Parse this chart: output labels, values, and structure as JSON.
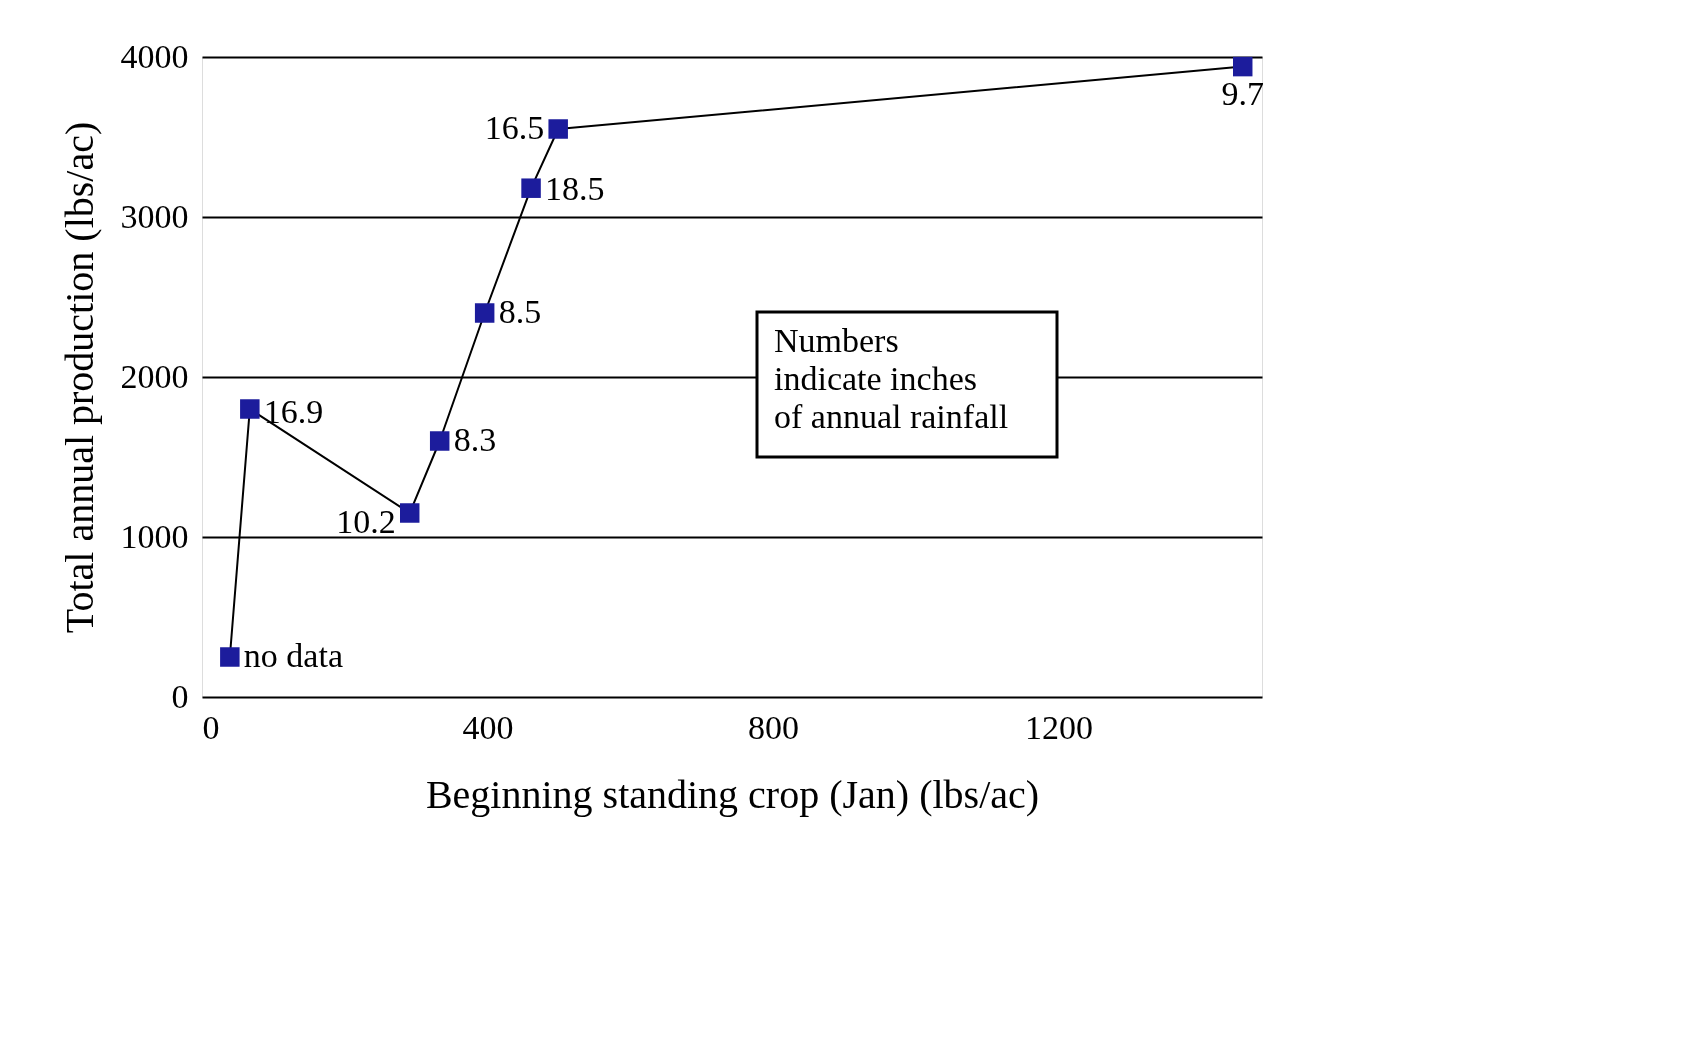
{
  "chart_data": {
    "type": "line",
    "xlabel": "Beginning standing crop (Jan) (lbs/ac)",
    "ylabel": "Total annual production (lbs/ac)",
    "x": [
      39,
      67,
      291,
      333,
      396,
      461,
      499,
      1458
    ],
    "series": [
      {
        "color": "#1c1c9c",
        "values": [
          250,
          1800,
          1150,
          1600,
          2400,
          3180,
          3550,
          3940
        ]
      }
    ],
    "xlim": [
      0,
      1485
    ],
    "ylim": [
      0,
      4000
    ],
    "xticks": [
      0,
      400,
      800,
      1200
    ],
    "yticks": [
      0,
      1000,
      2000,
      3000,
      4000
    ],
    "grid": "y",
    "marker": "square",
    "line_style": "solid",
    "annotations": [
      {
        "text": "no data",
        "x": 39,
        "y": 250
      },
      {
        "text": "16.9",
        "x": 67,
        "y": 1800
      },
      {
        "text": "10.2",
        "x": 291,
        "y": 1150
      },
      {
        "text": "8.3",
        "x": 333,
        "y": 1600
      },
      {
        "text": "8.5",
        "x": 396,
        "y": 2400
      },
      {
        "text": "18.5",
        "x": 461,
        "y": 3180
      },
      {
        "text": "16.5",
        "x": 499,
        "y": 3550
      },
      {
        "text": "9.7",
        "x": 1458,
        "y": 3940
      },
      "Numbers indicate inches of annual rainfall"
    ]
  }
}
